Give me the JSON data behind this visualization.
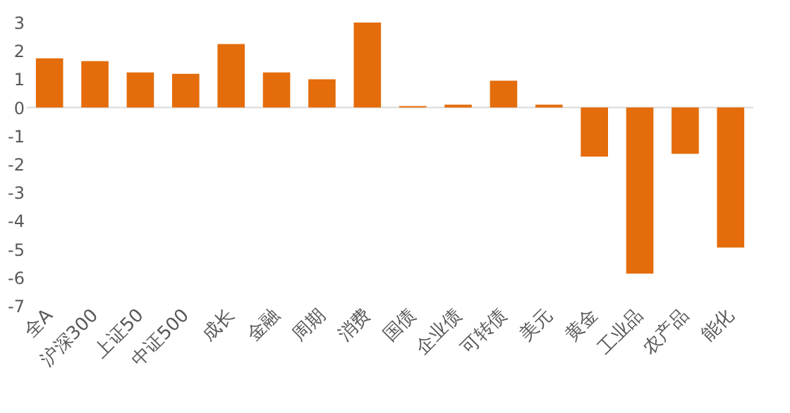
{
  "chart_data": {
    "type": "bar",
    "categories": [
      "全A",
      "沪深300",
      "上证50",
      "中证500",
      "成长",
      "金融",
      "周期",
      "消费",
      "国债",
      "企业债",
      "可转债",
      "美元",
      "黄金",
      "工业品",
      "农产品",
      "能化"
    ],
    "values": [
      1.74,
      1.64,
      1.24,
      1.19,
      2.24,
      1.24,
      1.0,
      3.0,
      0.05,
      0.1,
      0.95,
      0.1,
      -1.73,
      -5.86,
      -1.63,
      -4.94
    ],
    "color": "#e46c0a",
    "ylim": [
      -7,
      3
    ],
    "yticks": [
      -7,
      -6,
      -5,
      -4,
      -3,
      -2,
      -1,
      0,
      1,
      2,
      3
    ],
    "grid": false,
    "ref_lines": [
      {
        "axis": "y",
        "value": 0,
        "color": "#d9d9d9"
      }
    ]
  }
}
